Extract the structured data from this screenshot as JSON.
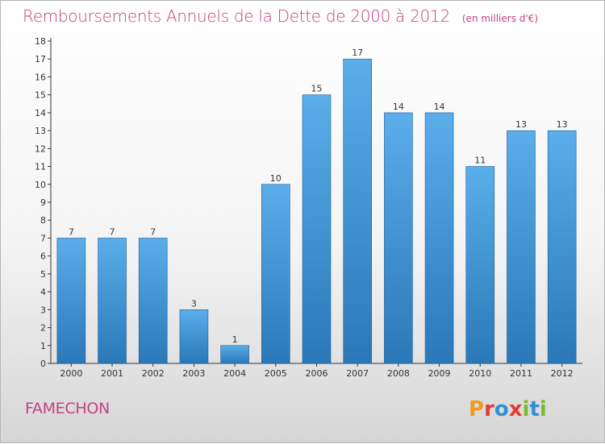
{
  "title": {
    "main": "Remboursements Annuels de la Dette de 2000 à 2012",
    "unit": "(en milliers d'€)"
  },
  "commune": "FAMECHON",
  "logo": {
    "text": "Proxiti",
    "letter_colors": [
      "#f29a1f",
      "#e63a2e",
      "#2f8fd8",
      "#e63a2e",
      "#7ab929",
      "#2f8fd8",
      "#7ab929"
    ]
  },
  "colors": {
    "title": "#c4407f",
    "bar_top": "#5aaeea",
    "bar_bottom": "#2a78b8",
    "axis": "#333333"
  },
  "chart_data": {
    "type": "bar",
    "categories": [
      "2000",
      "2001",
      "2002",
      "2003",
      "2004",
      "2005",
      "2006",
      "2007",
      "2008",
      "2009",
      "2010",
      "2011",
      "2012"
    ],
    "values": [
      7,
      7,
      7,
      3,
      1,
      10,
      15,
      17,
      14,
      14,
      11,
      13,
      13
    ],
    "ylim": [
      0,
      18
    ],
    "yticks": [
      0,
      1,
      2,
      3,
      4,
      5,
      6,
      7,
      8,
      9,
      10,
      11,
      12,
      13,
      14,
      15,
      16,
      17,
      18
    ],
    "data_labels": true,
    "grid": false,
    "legend": "none"
  }
}
